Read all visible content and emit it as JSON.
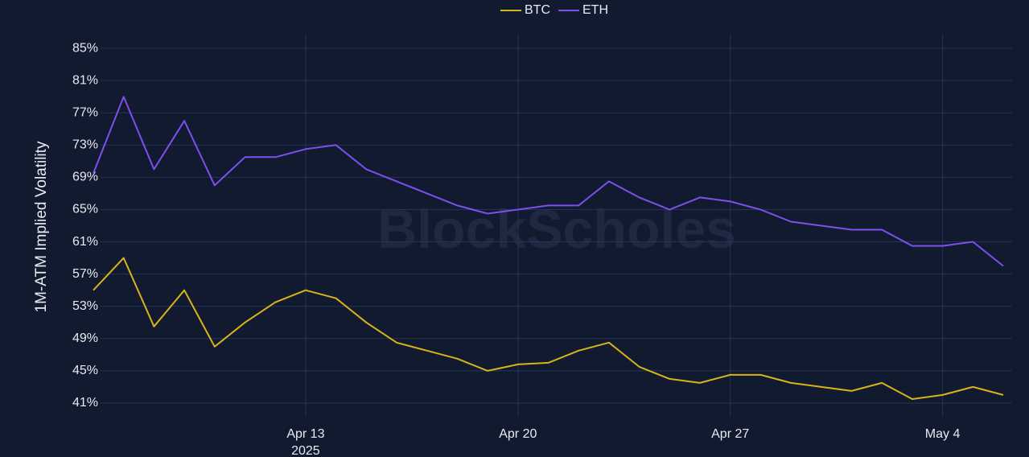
{
  "chart_data": {
    "type": "line",
    "y_label": "1M-ATM Implied Volatility",
    "watermark": "BlockScholes",
    "legend": "top",
    "grid": true,
    "x": [
      "2025-04-06",
      "2025-04-07",
      "2025-04-08",
      "2025-04-09",
      "2025-04-10",
      "2025-04-11",
      "2025-04-12",
      "2025-04-13",
      "2025-04-14",
      "2025-04-15",
      "2025-04-16",
      "2025-04-17",
      "2025-04-18",
      "2025-04-19",
      "2025-04-20",
      "2025-04-21",
      "2025-04-22",
      "2025-04-23",
      "2025-04-24",
      "2025-04-25",
      "2025-04-26",
      "2025-04-27",
      "2025-04-28",
      "2025-04-29",
      "2025-04-30",
      "2025-05-01",
      "2025-05-02",
      "2025-05-03",
      "2025-05-04",
      "2025-05-05",
      "2025-05-06"
    ],
    "series": [
      {
        "name": "BTC",
        "color": "#d9b31c",
        "values": [
          55,
          59,
          50.5,
          55,
          48,
          51,
          53.5,
          55,
          54,
          51,
          48.5,
          47.5,
          46.5,
          45,
          45.8,
          46,
          47.5,
          48.5,
          45.5,
          44,
          43.5,
          44.5,
          44.5,
          43.5,
          43,
          42.5,
          43.5,
          41.5,
          42,
          43,
          42
        ]
      },
      {
        "name": "ETH",
        "color": "#7e4ff0",
        "values": [
          69.5,
          79,
          70,
          76,
          68,
          71.5,
          71.5,
          72.5,
          73,
          70,
          68.5,
          67,
          65.5,
          64.5,
          65,
          65.5,
          65.5,
          68.5,
          66.5,
          65,
          66.5,
          66,
          65,
          63.5,
          63,
          62.5,
          62.5,
          60.5,
          60.5,
          61,
          58
        ]
      }
    ],
    "xlim": [
      "2025-04-06",
      "2025-05-06"
    ],
    "xticks": [
      {
        "value": "2025-04-13",
        "label": "Apr 13\n2025"
      },
      {
        "value": "2025-04-20",
        "label": "Apr 20"
      },
      {
        "value": "2025-04-27",
        "label": "Apr 27"
      },
      {
        "value": "2025-05-04",
        "label": "May 4"
      }
    ],
    "ylim": [
      39.3,
      86.7
    ],
    "yticks": [
      {
        "value": 41,
        "label": "41%"
      },
      {
        "value": 45,
        "label": "45%"
      },
      {
        "value": 49,
        "label": "49%"
      },
      {
        "value": 53,
        "label": "53%"
      },
      {
        "value": 57,
        "label": "57%"
      },
      {
        "value": 61,
        "label": "61%"
      },
      {
        "value": 65,
        "label": "65%"
      },
      {
        "value": 69,
        "label": "69%"
      },
      {
        "value": 73,
        "label": "73%"
      },
      {
        "value": 77,
        "label": "77%"
      },
      {
        "value": 81,
        "label": "81%"
      },
      {
        "value": 85,
        "label": "85%"
      }
    ]
  }
}
